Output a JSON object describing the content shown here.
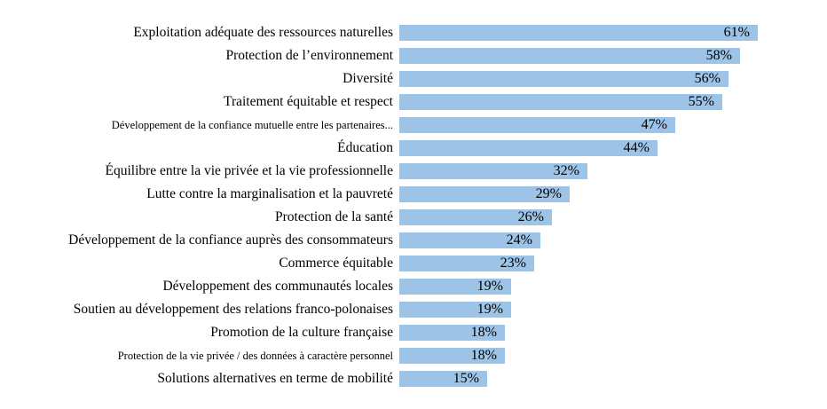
{
  "chart_data": {
    "type": "bar",
    "orientation": "horizontal",
    "categories": [
      "Exploitation adéquate des ressources naturelles",
      "Protection de l’environnement",
      "Diversité",
      "Traitement équitable et respect",
      "Développement de la confiance mutuelle entre les partenaires...",
      "Éducation",
      "Équilibre entre la vie privée et la vie professionnelle",
      "Lutte contre la marginalisation et la pauvreté",
      "Protection de la santé",
      "Développement de la confiance auprès des consommateurs",
      "Commerce équitable",
      "Développement des communautés locales",
      "Soutien au développement des relations franco-polonaises",
      "Promotion de la culture française",
      "Protection de la vie privée / des données à caractère personnel",
      "Solutions alternatives en terme de mobilité"
    ],
    "values": [
      61,
      58,
      56,
      55,
      47,
      44,
      32,
      29,
      26,
      24,
      23,
      19,
      19,
      18,
      18,
      15
    ],
    "value_labels": [
      "61%",
      "58%",
      "56%",
      "55%",
      "47%",
      "44%",
      "32%",
      "29%",
      "26%",
      "24%",
      "23%",
      "19%",
      "19%",
      "18%",
      "18%",
      "15%"
    ],
    "xlim": [
      0,
      61
    ],
    "grid": "off",
    "legend": "none",
    "value_label_position": "inside-end",
    "bar_color": "#9DC3E6",
    "text_color": "#000000",
    "background_color": "#FFFFFF"
  }
}
